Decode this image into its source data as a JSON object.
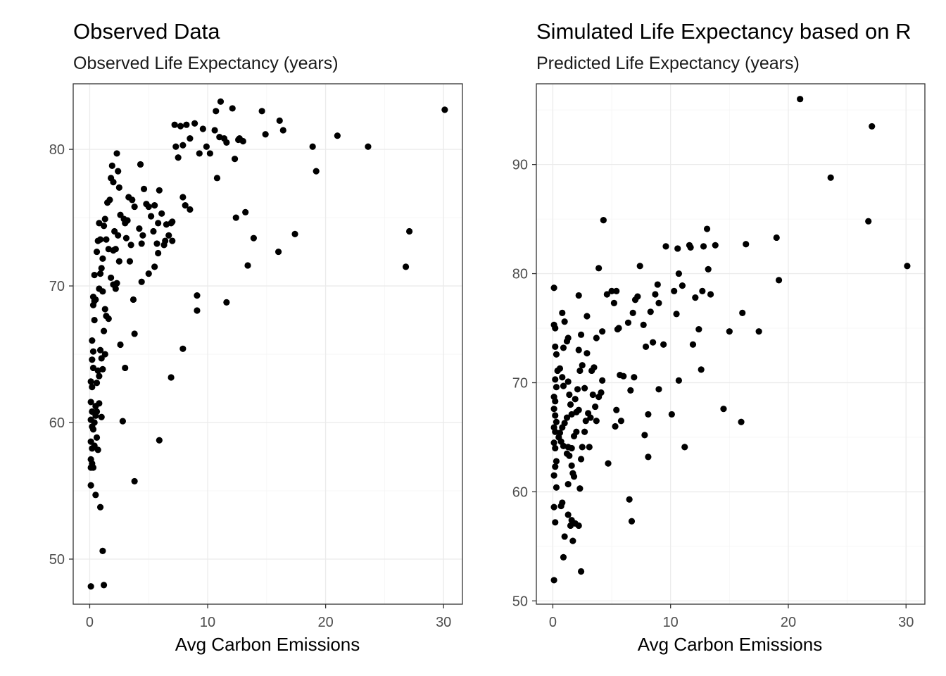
{
  "chart_data": [
    {
      "type": "scatter",
      "title": "Observed Data",
      "subtitle": "Observed Life Expectancy (years)",
      "xlabel": "Avg Carbon Emissions",
      "ylabel": "",
      "xlim": [
        -1.4,
        31.6
      ],
      "ylim": [
        46.7,
        84.8
      ],
      "xticks": [
        0,
        10,
        20,
        30
      ],
      "yticks": [
        50,
        60,
        70,
        80
      ],
      "grid": true,
      "legend": "none",
      "points": [
        [
          0.1,
          48.0
        ],
        [
          0.1,
          55.4
        ],
        [
          0.1,
          56.7
        ],
        [
          0.1,
          57.3
        ],
        [
          0.2,
          58.1
        ],
        [
          0.1,
          58.6
        ],
        [
          0.2,
          59.7
        ],
        [
          0.1,
          60.2
        ],
        [
          0.2,
          60.8
        ],
        [
          0.1,
          61.5
        ],
        [
          0.2,
          62.6
        ],
        [
          0.1,
          63.0
        ],
        [
          0.3,
          64.0
        ],
        [
          0.2,
          64.6
        ],
        [
          0.3,
          65.2
        ],
        [
          0.2,
          66.0
        ],
        [
          0.4,
          67.5
        ],
        [
          0.3,
          68.6
        ],
        [
          0.4,
          68.9
        ],
        [
          0.3,
          69.2
        ],
        [
          0.5,
          69.0
        ],
        [
          0.4,
          70.8
        ],
        [
          0.6,
          72.5
        ],
        [
          0.8,
          74.6
        ],
        [
          0.7,
          73.3
        ],
        [
          0.9,
          70.9
        ],
        [
          1.0,
          71.3
        ],
        [
          1.1,
          72.0
        ],
        [
          1.2,
          74.4
        ],
        [
          1.3,
          74.9
        ],
        [
          1.5,
          76.1
        ],
        [
          1.7,
          76.3
        ],
        [
          1.8,
          77.9
        ],
        [
          1.9,
          78.8
        ],
        [
          2.0,
          77.6
        ],
        [
          2.3,
          79.7
        ],
        [
          2.4,
          78.4
        ],
        [
          2.5,
          77.2
        ],
        [
          1.4,
          73.4
        ],
        [
          1.6,
          72.7
        ],
        [
          0.9,
          73.4
        ],
        [
          1.1,
          69.6
        ],
        [
          0.8,
          69.8
        ],
        [
          1.3,
          68.3
        ],
        [
          1.4,
          67.8
        ],
        [
          1.6,
          67.6
        ],
        [
          1.2,
          66.7
        ],
        [
          0.9,
          65.3
        ],
        [
          1.0,
          64.7
        ],
        [
          0.7,
          63.8
        ],
        [
          0.8,
          63.4
        ],
        [
          1.1,
          63.9
        ],
        [
          0.6,
          62.9
        ],
        [
          0.5,
          61.2
        ],
        [
          0.6,
          60.8
        ],
        [
          0.5,
          60.5
        ],
        [
          0.4,
          60.0
        ],
        [
          0.3,
          59.5
        ],
        [
          0.6,
          58.9
        ],
        [
          0.4,
          58.3
        ],
        [
          0.2,
          57.0
        ],
        [
          0.3,
          56.7
        ],
        [
          0.5,
          54.7
        ],
        [
          0.9,
          53.8
        ],
        [
          1.1,
          50.6
        ],
        [
          1.2,
          48.1
        ],
        [
          0.7,
          58.0
        ],
        [
          1.0,
          60.4
        ],
        [
          0.8,
          61.4
        ],
        [
          1.3,
          65.0
        ],
        [
          1.8,
          70.6
        ],
        [
          2.0,
          70.1
        ],
        [
          2.2,
          69.8
        ],
        [
          2.3,
          70.2
        ],
        [
          2.0,
          72.6
        ],
        [
          2.2,
          72.7
        ],
        [
          2.1,
          74.0
        ],
        [
          2.4,
          73.7
        ],
        [
          2.5,
          71.8
        ],
        [
          2.6,
          75.2
        ],
        [
          2.9,
          74.9
        ],
        [
          3.0,
          74.6
        ],
        [
          3.2,
          74.8
        ],
        [
          3.3,
          76.5
        ],
        [
          3.6,
          76.3
        ],
        [
          3.8,
          75.8
        ],
        [
          3.5,
          73.0
        ],
        [
          3.4,
          71.8
        ],
        [
          3.1,
          73.5
        ],
        [
          3.7,
          69.0
        ],
        [
          3.8,
          66.5
        ],
        [
          3.0,
          64.0
        ],
        [
          2.8,
          60.1
        ],
        [
          3.8,
          55.7
        ],
        [
          2.6,
          65.7
        ],
        [
          4.2,
          74.2
        ],
        [
          4.3,
          78.9
        ],
        [
          4.5,
          73.7
        ],
        [
          4.4,
          73.1
        ],
        [
          4.8,
          76.0
        ],
        [
          5.0,
          75.8
        ],
        [
          5.2,
          75.1
        ],
        [
          5.4,
          74.0
        ],
        [
          5.5,
          75.9
        ],
        [
          5.7,
          73.1
        ],
        [
          5.8,
          72.4
        ],
        [
          5.8,
          74.6
        ],
        [
          5.9,
          77.0
        ],
        [
          6.1,
          75.3
        ],
        [
          6.3,
          73.0
        ],
        [
          6.4,
          73.3
        ],
        [
          6.5,
          74.5
        ],
        [
          6.7,
          73.7
        ],
        [
          6.9,
          74.6
        ],
        [
          7.0,
          74.7
        ],
        [
          4.6,
          77.1
        ],
        [
          4.4,
          70.3
        ],
        [
          5.0,
          70.9
        ],
        [
          5.5,
          71.4
        ],
        [
          5.9,
          58.7
        ],
        [
          6.9,
          63.3
        ],
        [
          7.0,
          73.3
        ],
        [
          7.2,
          81.8
        ],
        [
          7.3,
          80.2
        ],
        [
          7.5,
          79.4
        ],
        [
          7.7,
          81.7
        ],
        [
          7.9,
          80.3
        ],
        [
          8.2,
          81.8
        ],
        [
          8.5,
          80.8
        ],
        [
          8.9,
          81.9
        ],
        [
          9.3,
          79.7
        ],
        [
          9.6,
          81.5
        ],
        [
          9.9,
          80.2
        ],
        [
          10.2,
          79.7
        ],
        [
          10.6,
          81.4
        ],
        [
          10.7,
          82.8
        ],
        [
          11.1,
          83.5
        ],
        [
          11.0,
          80.9
        ],
        [
          11.4,
          80.8
        ],
        [
          11.6,
          80.5
        ],
        [
          12.1,
          83.0
        ],
        [
          12.3,
          79.3
        ],
        [
          12.6,
          80.7
        ],
        [
          13.0,
          80.6
        ],
        [
          12.7,
          80.8
        ],
        [
          14.6,
          82.8
        ],
        [
          14.9,
          81.1
        ],
        [
          16.1,
          82.1
        ],
        [
          16.4,
          81.4
        ],
        [
          18.9,
          80.2
        ],
        [
          21.0,
          81.0
        ],
        [
          23.6,
          80.2
        ],
        [
          30.1,
          82.9
        ],
        [
          19.2,
          78.4
        ],
        [
          10.8,
          77.9
        ],
        [
          12.4,
          75.0
        ],
        [
          13.2,
          75.4
        ],
        [
          13.9,
          73.5
        ],
        [
          13.4,
          71.5
        ],
        [
          16.0,
          72.5
        ],
        [
          17.4,
          73.8
        ],
        [
          26.8,
          71.4
        ],
        [
          27.1,
          74.0
        ],
        [
          7.9,
          76.5
        ],
        [
          8.1,
          75.9
        ],
        [
          8.5,
          75.6
        ],
        [
          9.1,
          69.3
        ],
        [
          9.1,
          68.2
        ],
        [
          11.6,
          68.8
        ],
        [
          7.9,
          65.4
        ]
      ]
    },
    {
      "type": "scatter",
      "title": "Simulated Life Expectancy based on R",
      "subtitle": "Predicted Life Expectancy (years)",
      "xlabel": "Avg Carbon Emissions",
      "ylabel": "",
      "xlim": [
        -1.4,
        31.6
      ],
      "ylim": [
        49.7,
        97.4
      ],
      "xticks": [
        0,
        10,
        20,
        30
      ],
      "yticks": [
        50,
        60,
        70,
        80,
        90
      ],
      "grid": true,
      "legend": "none",
      "points": [
        [
          0.1,
          51.9
        ],
        [
          0.2,
          57.2
        ],
        [
          0.1,
          58.6
        ],
        [
          0.3,
          60.4
        ],
        [
          0.1,
          61.5
        ],
        [
          0.2,
          62.3
        ],
        [
          0.3,
          62.8
        ],
        [
          0.2,
          64.0
        ],
        [
          0.1,
          64.5
        ],
        [
          0.2,
          65.5
        ],
        [
          0.1,
          65.9
        ],
        [
          0.3,
          66.4
        ],
        [
          0.2,
          67.0
        ],
        [
          0.1,
          67.6
        ],
        [
          0.2,
          68.3
        ],
        [
          0.1,
          68.7
        ],
        [
          0.3,
          69.6
        ],
        [
          0.2,
          70.3
        ],
        [
          0.4,
          71.1
        ],
        [
          0.3,
          72.6
        ],
        [
          0.2,
          73.3
        ],
        [
          0.1,
          75.3
        ],
        [
          0.2,
          75.0
        ],
        [
          0.1,
          78.7
        ],
        [
          0.8,
          76.4
        ],
        [
          1.0,
          75.6
        ],
        [
          1.2,
          73.8
        ],
        [
          1.3,
          74.1
        ],
        [
          0.9,
          73.2
        ],
        [
          0.6,
          71.3
        ],
        [
          0.8,
          70.5
        ],
        [
          0.9,
          69.7
        ],
        [
          1.3,
          70.1
        ],
        [
          1.4,
          68.9
        ],
        [
          1.5,
          68.0
        ],
        [
          1.6,
          67.1
        ],
        [
          1.2,
          66.8
        ],
        [
          1.0,
          66.3
        ],
        [
          0.8,
          65.9
        ],
        [
          0.6,
          65.4
        ],
        [
          0.5,
          65.0
        ],
        [
          0.7,
          64.6
        ],
        [
          0.9,
          64.2
        ],
        [
          1.3,
          64.1
        ],
        [
          1.6,
          64.0
        ],
        [
          1.8,
          65.1
        ],
        [
          2.0,
          67.3
        ],
        [
          2.2,
          67.5
        ],
        [
          1.9,
          68.5
        ],
        [
          2.1,
          69.4
        ],
        [
          1.4,
          63.3
        ],
        [
          1.2,
          63.5
        ],
        [
          1.6,
          62.4
        ],
        [
          1.7,
          61.7
        ],
        [
          1.3,
          60.7
        ],
        [
          1.8,
          61.4
        ],
        [
          2.3,
          60.3
        ],
        [
          0.7,
          58.7
        ],
        [
          0.8,
          59.0
        ],
        [
          1.3,
          57.9
        ],
        [
          1.6,
          57.4
        ],
        [
          1.9,
          57.1
        ],
        [
          2.2,
          56.9
        ],
        [
          1.7,
          55.5
        ],
        [
          1.0,
          55.9
        ],
        [
          0.9,
          54.0
        ],
        [
          2.4,
          52.7
        ],
        [
          1.5,
          56.9
        ],
        [
          2.4,
          63.0
        ],
        [
          2.5,
          64.1
        ],
        [
          2.7,
          65.5
        ],
        [
          2.8,
          66.5
        ],
        [
          3.0,
          67.2
        ],
        [
          3.2,
          66.8
        ],
        [
          3.4,
          68.9
        ],
        [
          3.7,
          66.5
        ],
        [
          3.6,
          67.8
        ],
        [
          3.9,
          68.7
        ],
        [
          4.1,
          69.1
        ],
        [
          4.2,
          70.2
        ],
        [
          2.3,
          71.1
        ],
        [
          2.5,
          71.6
        ],
        [
          2.7,
          69.5
        ],
        [
          2.9,
          72.7
        ],
        [
          3.3,
          71.1
        ],
        [
          3.5,
          71.4
        ],
        [
          3.7,
          74.1
        ],
        [
          4.2,
          74.7
        ],
        [
          2.2,
          73.0
        ],
        [
          2.4,
          74.4
        ],
        [
          2.2,
          78.0
        ],
        [
          2.9,
          76.1
        ],
        [
          3.9,
          80.5
        ],
        [
          4.3,
          84.9
        ],
        [
          4.6,
          78.1
        ],
        [
          5.0,
          78.4
        ],
        [
          5.4,
          78.4
        ],
        [
          5.2,
          77.3
        ],
        [
          5.5,
          74.9
        ],
        [
          5.6,
          75.0
        ],
        [
          5.7,
          70.7
        ],
        [
          6.0,
          70.6
        ],
        [
          5.4,
          67.5
        ],
        [
          5.3,
          66.0
        ],
        [
          5.8,
          66.5
        ],
        [
          4.7,
          62.6
        ],
        [
          3.1,
          64.1
        ],
        [
          2.0,
          65.5
        ],
        [
          6.4,
          75.5
        ],
        [
          6.6,
          69.3
        ],
        [
          6.9,
          70.5
        ],
        [
          7.0,
          77.6
        ],
        [
          7.2,
          77.9
        ],
        [
          6.8,
          76.4
        ],
        [
          7.4,
          80.7
        ],
        [
          7.7,
          75.3
        ],
        [
          7.9,
          73.3
        ],
        [
          8.1,
          67.1
        ],
        [
          7.8,
          65.2
        ],
        [
          8.3,
          76.5
        ],
        [
          8.5,
          73.7
        ],
        [
          8.7,
          78.1
        ],
        [
          8.9,
          79.0
        ],
        [
          9.0,
          77.3
        ],
        [
          9.0,
          69.4
        ],
        [
          9.4,
          73.5
        ],
        [
          9.6,
          82.5
        ],
        [
          10.1,
          67.1
        ],
        [
          10.3,
          78.4
        ],
        [
          10.5,
          76.3
        ],
        [
          10.7,
          80.0
        ],
        [
          10.7,
          70.2
        ],
        [
          11.0,
          78.9
        ],
        [
          11.2,
          64.1
        ],
        [
          10.6,
          82.3
        ],
        [
          11.6,
          82.6
        ],
        [
          11.7,
          82.4
        ],
        [
          11.9,
          73.5
        ],
        [
          12.1,
          77.8
        ],
        [
          12.4,
          74.9
        ],
        [
          12.6,
          71.2
        ],
        [
          12.7,
          78.4
        ],
        [
          12.8,
          82.5
        ],
        [
          13.1,
          84.1
        ],
        [
          13.2,
          80.4
        ],
        [
          13.4,
          78.1
        ],
        [
          13.8,
          82.6
        ],
        [
          14.5,
          67.6
        ],
        [
          15.0,
          74.7
        ],
        [
          16.0,
          66.4
        ],
        [
          16.1,
          76.4
        ],
        [
          16.4,
          82.7
        ],
        [
          17.5,
          74.7
        ],
        [
          19.0,
          83.3
        ],
        [
          19.2,
          79.4
        ],
        [
          21.0,
          96.0
        ],
        [
          23.6,
          88.8
        ],
        [
          26.8,
          84.8
        ],
        [
          27.1,
          93.5
        ],
        [
          30.1,
          80.7
        ],
        [
          6.5,
          59.3
        ],
        [
          6.7,
          57.3
        ],
        [
          8.1,
          63.2
        ]
      ]
    }
  ]
}
